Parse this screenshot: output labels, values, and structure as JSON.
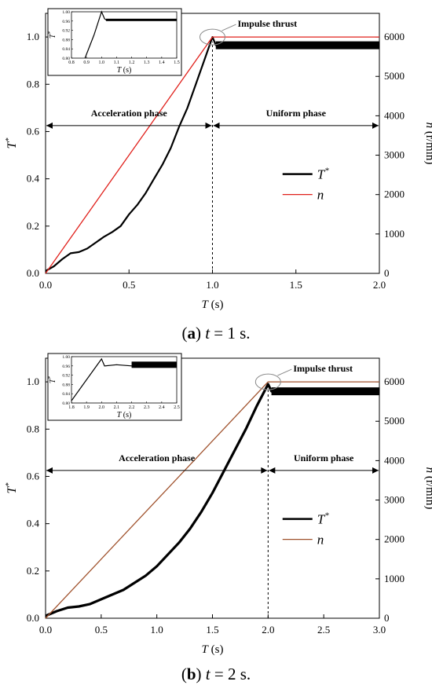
{
  "chart_data": [
    {
      "type": "line",
      "caption": {
        "letter": "a",
        "text": " t = 1 s."
      },
      "xlabel": "T (s)",
      "ylabel_left": "T*",
      "ylabel_right": "n (r/min)",
      "xlim": [
        0,
        2.0
      ],
      "ylim_left": [
        0,
        1.1
      ],
      "ylim_right": [
        0,
        6600
      ],
      "xticks": [
        "0.0",
        "0.5",
        "1.0",
        "1.5",
        "2.0"
      ],
      "yticks_left": [
        "0.0",
        "0.2",
        "0.4",
        "0.6",
        "0.8",
        "1.0"
      ],
      "yticks_right": [
        "0",
        "1000",
        "2000",
        "3000",
        "4000",
        "5000",
        "6000"
      ],
      "grid": false,
      "legend_position": "middle-right",
      "series": [
        {
          "name": "T*",
          "axis": "left",
          "color": "#000000",
          "line_width": 2.2,
          "x": [
            0,
            0.05,
            0.1,
            0.15,
            0.2,
            0.25,
            0.3,
            0.35,
            0.4,
            0.45,
            0.5,
            0.55,
            0.6,
            0.65,
            0.7,
            0.75,
            0.8,
            0.85,
            0.9,
            0.95,
            1.0,
            1.02,
            2.0
          ],
          "values": [
            0.01,
            0.03,
            0.06,
            0.085,
            0.09,
            0.105,
            0.13,
            0.155,
            0.175,
            0.2,
            0.25,
            0.29,
            0.34,
            0.4,
            0.46,
            0.53,
            0.62,
            0.7,
            0.8,
            0.9,
            1.0,
            0.965,
            0.965
          ]
        },
        {
          "name": "n",
          "axis": "right",
          "color": "#e0201b",
          "line_width": 1.3,
          "x": [
            0,
            1.0,
            2.0
          ],
          "values": [
            0,
            6000,
            6000
          ]
        }
      ],
      "annotations": {
        "impulse_label": "Impulse thrust",
        "phase_left": "Acceleration phase",
        "phase_right": "Uniform phase",
        "phase_arrow_y": 0.625,
        "divider_x": 1.0
      },
      "inset": {
        "xlabel": "T (s)",
        "ylabel": "T*",
        "xlim": [
          0.8,
          1.5
        ],
        "ylim": [
          0.8,
          1.0
        ],
        "xticks": [
          "0.8",
          "0.9",
          "1.0",
          "1.1",
          "1.2",
          "1.3",
          "1.4",
          "1.5"
        ],
        "yticks": [
          "0.80",
          "0.84",
          "0.88",
          "0.92",
          "0.96",
          "1.00"
        ],
        "x": [
          0.89,
          0.95,
          1.0,
          1.02,
          1.03,
          1.5
        ],
        "values": [
          0.8,
          0.9,
          1.0,
          0.97,
          0.965,
          0.965
        ]
      }
    },
    {
      "type": "line",
      "caption": {
        "letter": "b",
        "text": " t = 2 s."
      },
      "xlabel": "T (s)",
      "ylabel_left": "T*",
      "ylabel_right": "n (r/min)",
      "xlim": [
        0,
        3.0
      ],
      "ylim_left": [
        0,
        1.1
      ],
      "ylim_right": [
        0,
        6600
      ],
      "xticks": [
        "0.0",
        "0.5",
        "1.0",
        "1.5",
        "2.0",
        "2.5",
        "3.0"
      ],
      "yticks_left": [
        "0.0",
        "0.2",
        "0.4",
        "0.6",
        "0.8",
        "1.0"
      ],
      "yticks_right": [
        "0",
        "1000",
        "2000",
        "3000",
        "4000",
        "5000",
        "6000"
      ],
      "grid": false,
      "legend_position": "middle-right",
      "series": [
        {
          "name": "T*",
          "axis": "left",
          "color": "#000000",
          "line_width": 3.2,
          "x": [
            0,
            0.1,
            0.2,
            0.3,
            0.4,
            0.5,
            0.6,
            0.7,
            0.8,
            0.9,
            1.0,
            1.1,
            1.2,
            1.3,
            1.4,
            1.5,
            1.6,
            1.7,
            1.8,
            1.9,
            2.0,
            2.03,
            3.0
          ],
          "values": [
            0.01,
            0.03,
            0.045,
            0.05,
            0.06,
            0.08,
            0.1,
            0.12,
            0.15,
            0.18,
            0.22,
            0.27,
            0.32,
            0.38,
            0.45,
            0.53,
            0.62,
            0.71,
            0.8,
            0.9,
            0.99,
            0.96,
            0.96
          ]
        },
        {
          "name": "n",
          "axis": "right",
          "color": "#a0522d",
          "line_width": 1.3,
          "x": [
            0,
            2.0,
            3.0
          ],
          "values": [
            0,
            6000,
            6000
          ]
        }
      ],
      "annotations": {
        "impulse_label": "Impulse thrust",
        "phase_left": "Acceleration phase",
        "phase_right": "Uniform phase",
        "phase_arrow_y": 0.625,
        "divider_x": 2.0
      },
      "inset": {
        "xlabel": "T (s)",
        "ylabel": "T*",
        "xlim": [
          1.8,
          2.5
        ],
        "ylim": [
          0.8,
          1.0
        ],
        "xticks": [
          "1.8",
          "1.9",
          "2.0",
          "2.1",
          "2.2",
          "2.3",
          "2.4",
          "2.5"
        ],
        "yticks": [
          "0.80",
          "0.84",
          "0.88",
          "0.92",
          "0.96",
          "1.00"
        ],
        "x": [
          1.8,
          1.9,
          2.0,
          2.02,
          2.1,
          2.2,
          2.5
        ],
        "values": [
          0.81,
          0.9,
          0.99,
          0.96,
          0.965,
          0.96,
          0.965
        ]
      }
    }
  ]
}
